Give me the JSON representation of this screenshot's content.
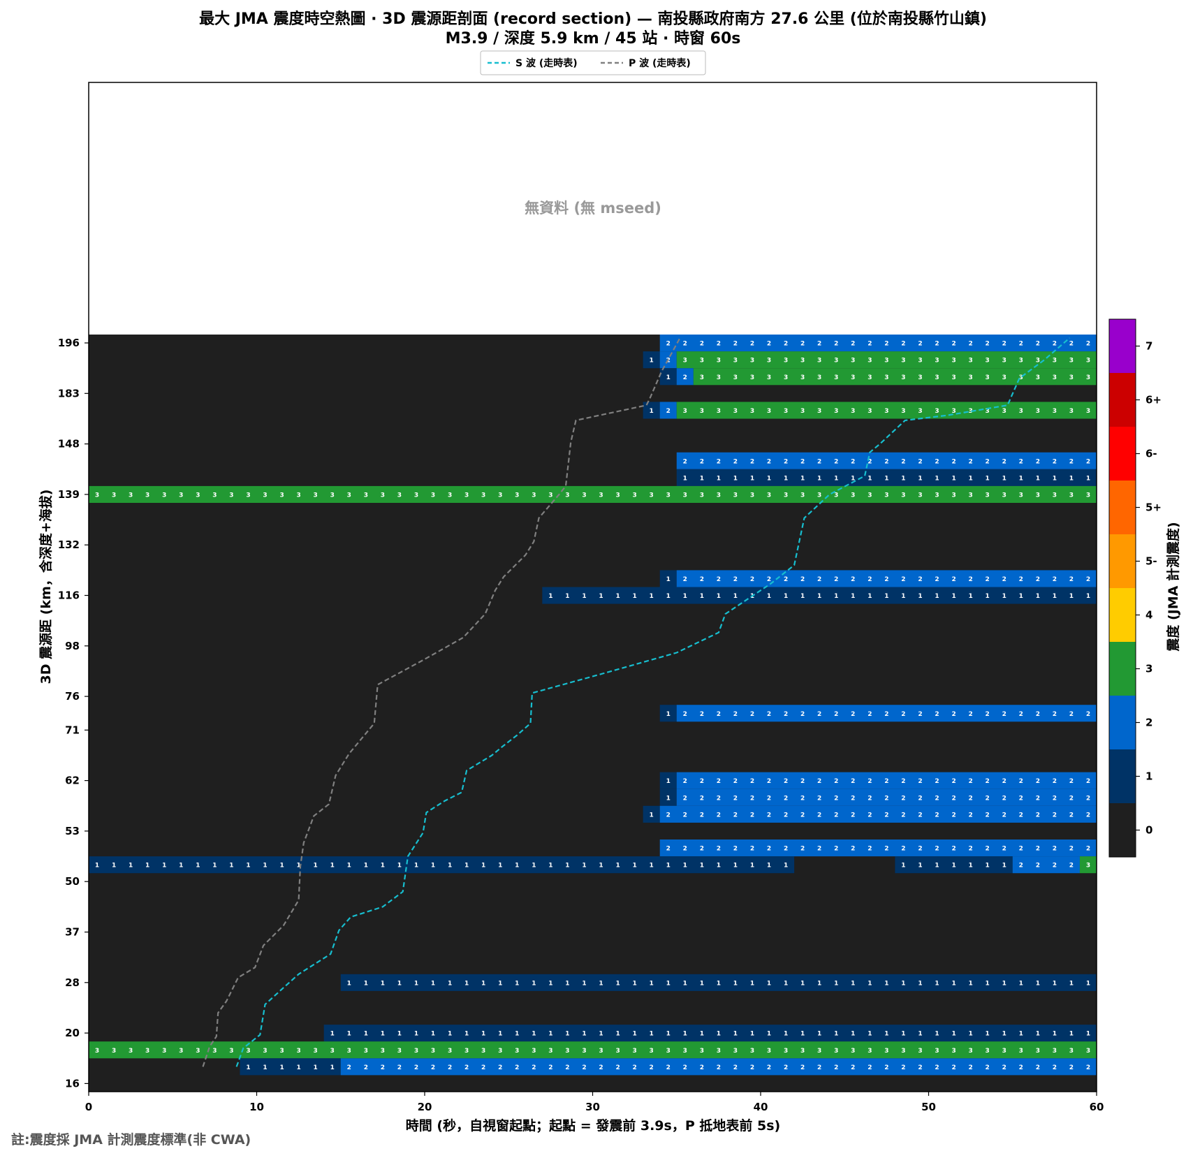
{
  "chart_data": {
    "type": "heatmap",
    "title_line1": "最大 JMA 震度時空熱圖 · 3D 震源距剖面 (record section) — 南投縣政府南方 27.6 公里 (位於南投縣竹山鎮)",
    "title_line2": "M3.9 / 深度 5.9 km / 45 站 · 時窗 60s",
    "xlabel": "時間 (秒，自視窗起點；起點 = 發震前 3.9s，P 抵地表前 5s)",
    "ylabel": "3D 震源距 (km，含深度+海拔)",
    "colorbar_label": "震度 (JMA 計測震度)",
    "no_data_text": "無資料 (無 mseed)",
    "footnote": "註:震度採 JMA 計測震度標準(非 CWA)",
    "xlim": [
      0,
      60
    ],
    "x_ticks": [
      0,
      10,
      20,
      30,
      40,
      50,
      60
    ],
    "y_tick_labels": [
      "196",
      "183",
      "148",
      "139",
      "132",
      "116",
      "98",
      "76",
      "71",
      "62",
      "53",
      "50",
      "37",
      "28",
      "20",
      "16"
    ],
    "legend": [
      {
        "label": "S 波 (走時表)",
        "color": "#17becf"
      },
      {
        "label": "P 波 (走時表)",
        "color": "#808080"
      }
    ],
    "intensity_scale": [
      {
        "label": "0",
        "color": "#1f1f1f"
      },
      {
        "label": "1",
        "color": "#003366"
      },
      {
        "label": "2",
        "color": "#0066cc"
      },
      {
        "label": "3",
        "color": "#229933"
      },
      {
        "label": "4",
        "color": "#ffcc00"
      },
      {
        "label": "5-",
        "color": "#ff9900"
      },
      {
        "label": "5+",
        "color": "#ff6600"
      },
      {
        "label": "6-",
        "color": "#ff0000"
      },
      {
        "label": "6+",
        "color": "#cc0000"
      },
      {
        "label": "7",
        "color": "#9900cc"
      }
    ],
    "rows_total": 60,
    "rows": [
      {
        "row": 0,
        "segs": [
          [
            34,
            60,
            2
          ]
        ]
      },
      {
        "row": 1,
        "segs": [
          [
            33,
            34,
            1
          ],
          [
            34,
            35,
            2
          ],
          [
            35,
            60,
            3
          ]
        ]
      },
      {
        "row": 2,
        "segs": [
          [
            34,
            35,
            1
          ],
          [
            35,
            36,
            2
          ],
          [
            36,
            60,
            3
          ]
        ]
      },
      {
        "row": 4,
        "segs": [
          [
            33,
            34,
            1
          ],
          [
            34,
            35,
            2
          ],
          [
            35,
            60,
            3
          ]
        ]
      },
      {
        "row": 7,
        "segs": [
          [
            35,
            60,
            2
          ]
        ]
      },
      {
        "row": 8,
        "segs": [
          [
            35,
            60,
            1
          ]
        ]
      },
      {
        "row": 9,
        "segs": [
          [
            0,
            60,
            3
          ]
        ]
      },
      {
        "row": 14,
        "segs": [
          [
            34,
            35,
            1
          ],
          [
            35,
            60,
            2
          ]
        ]
      },
      {
        "row": 15,
        "segs": [
          [
            27,
            60,
            1
          ]
        ]
      },
      {
        "row": 22,
        "segs": [
          [
            34,
            35,
            1
          ],
          [
            35,
            60,
            2
          ]
        ]
      },
      {
        "row": 26,
        "segs": [
          [
            34,
            35,
            1
          ],
          [
            35,
            60,
            2
          ]
        ]
      },
      {
        "row": 27,
        "segs": [
          [
            34,
            35,
            1
          ],
          [
            35,
            60,
            2
          ]
        ]
      },
      {
        "row": 28,
        "segs": [
          [
            33,
            34,
            1
          ],
          [
            34,
            60,
            2
          ]
        ]
      },
      {
        "row": 30,
        "segs": [
          [
            34,
            60,
            2
          ]
        ]
      },
      {
        "row": 31,
        "segs": [
          [
            0,
            42,
            1
          ],
          [
            48,
            55,
            1
          ],
          [
            55,
            59,
            2
          ],
          [
            59,
            60,
            3
          ]
        ]
      },
      {
        "row": 38,
        "segs": [
          [
            15,
            60,
            1
          ]
        ]
      },
      {
        "row": 41,
        "segs": [
          [
            14,
            60,
            1
          ]
        ]
      },
      {
        "row": 42,
        "segs": [
          [
            0,
            60,
            3
          ]
        ]
      },
      {
        "row": 43,
        "segs": [
          [
            9,
            15,
            1
          ],
          [
            15,
            60,
            2
          ]
        ]
      }
    ],
    "p_wave": [
      [
        6.8,
        43.5
      ],
      [
        7.2,
        42.3
      ],
      [
        7.6,
        41.7
      ],
      [
        7.7,
        40.3
      ],
      [
        8.2,
        39.6
      ],
      [
        8.9,
        38.2
      ],
      [
        9.9,
        37.6
      ],
      [
        10.4,
        36.3
      ],
      [
        11.6,
        35.1
      ],
      [
        12.5,
        33.6
      ],
      [
        12.6,
        31.6
      ],
      [
        12.8,
        30.2
      ],
      [
        13.4,
        28.6
      ],
      [
        14.3,
        27.9
      ],
      [
        14.7,
        26.2
      ],
      [
        15.5,
        24.9
      ],
      [
        17.0,
        23.1
      ],
      [
        17.2,
        20.8
      ],
      [
        19.8,
        19.4
      ],
      [
        22.3,
        18.0
      ],
      [
        23.6,
        16.6
      ],
      [
        24.2,
        15.2
      ],
      [
        24.7,
        14.4
      ],
      [
        26.0,
        13.1
      ],
      [
        26.5,
        12.3
      ],
      [
        26.8,
        10.9
      ],
      [
        28.0,
        9.5
      ],
      [
        28.4,
        9.0
      ],
      [
        28.7,
        6.4
      ],
      [
        29.0,
        5.1
      ],
      [
        33.2,
        4.2
      ],
      [
        33.4,
        3.8
      ],
      [
        34.1,
        2.2
      ],
      [
        35.2,
        0.2
      ]
    ],
    "s_wave": [
      [
        8.8,
        43.5
      ],
      [
        9.2,
        42.4
      ],
      [
        10.2,
        41.6
      ],
      [
        10.5,
        39.8
      ],
      [
        11.6,
        38.8
      ],
      [
        12.5,
        38.0
      ],
      [
        14.4,
        36.8
      ],
      [
        14.9,
        35.4
      ],
      [
        15.6,
        34.6
      ],
      [
        17.5,
        34.0
      ],
      [
        18.7,
        33.1
      ],
      [
        19.0,
        31.0
      ],
      [
        19.9,
        29.6
      ],
      [
        20.1,
        28.4
      ],
      [
        21.2,
        27.7
      ],
      [
        22.2,
        27.2
      ],
      [
        22.5,
        25.9
      ],
      [
        24.0,
        25.0
      ],
      [
        24.6,
        24.5
      ],
      [
        25.5,
        23.8
      ],
      [
        26.3,
        23.1
      ],
      [
        26.4,
        21.3
      ],
      [
        30.4,
        20.2
      ],
      [
        35.0,
        18.9
      ],
      [
        37.5,
        17.7
      ],
      [
        37.9,
        16.6
      ],
      [
        40.6,
        14.8
      ],
      [
        42.0,
        13.7
      ],
      [
        42.6,
        10.9
      ],
      [
        44.1,
        9.5
      ],
      [
        46.2,
        8.4
      ],
      [
        46.5,
        7.0
      ],
      [
        47.1,
        6.5
      ],
      [
        48.6,
        5.1
      ],
      [
        51.1,
        4.8
      ],
      [
        54.7,
        4.2
      ],
      [
        55.4,
        2.6
      ],
      [
        56.9,
        1.5
      ],
      [
        58.4,
        0.2
      ]
    ]
  }
}
